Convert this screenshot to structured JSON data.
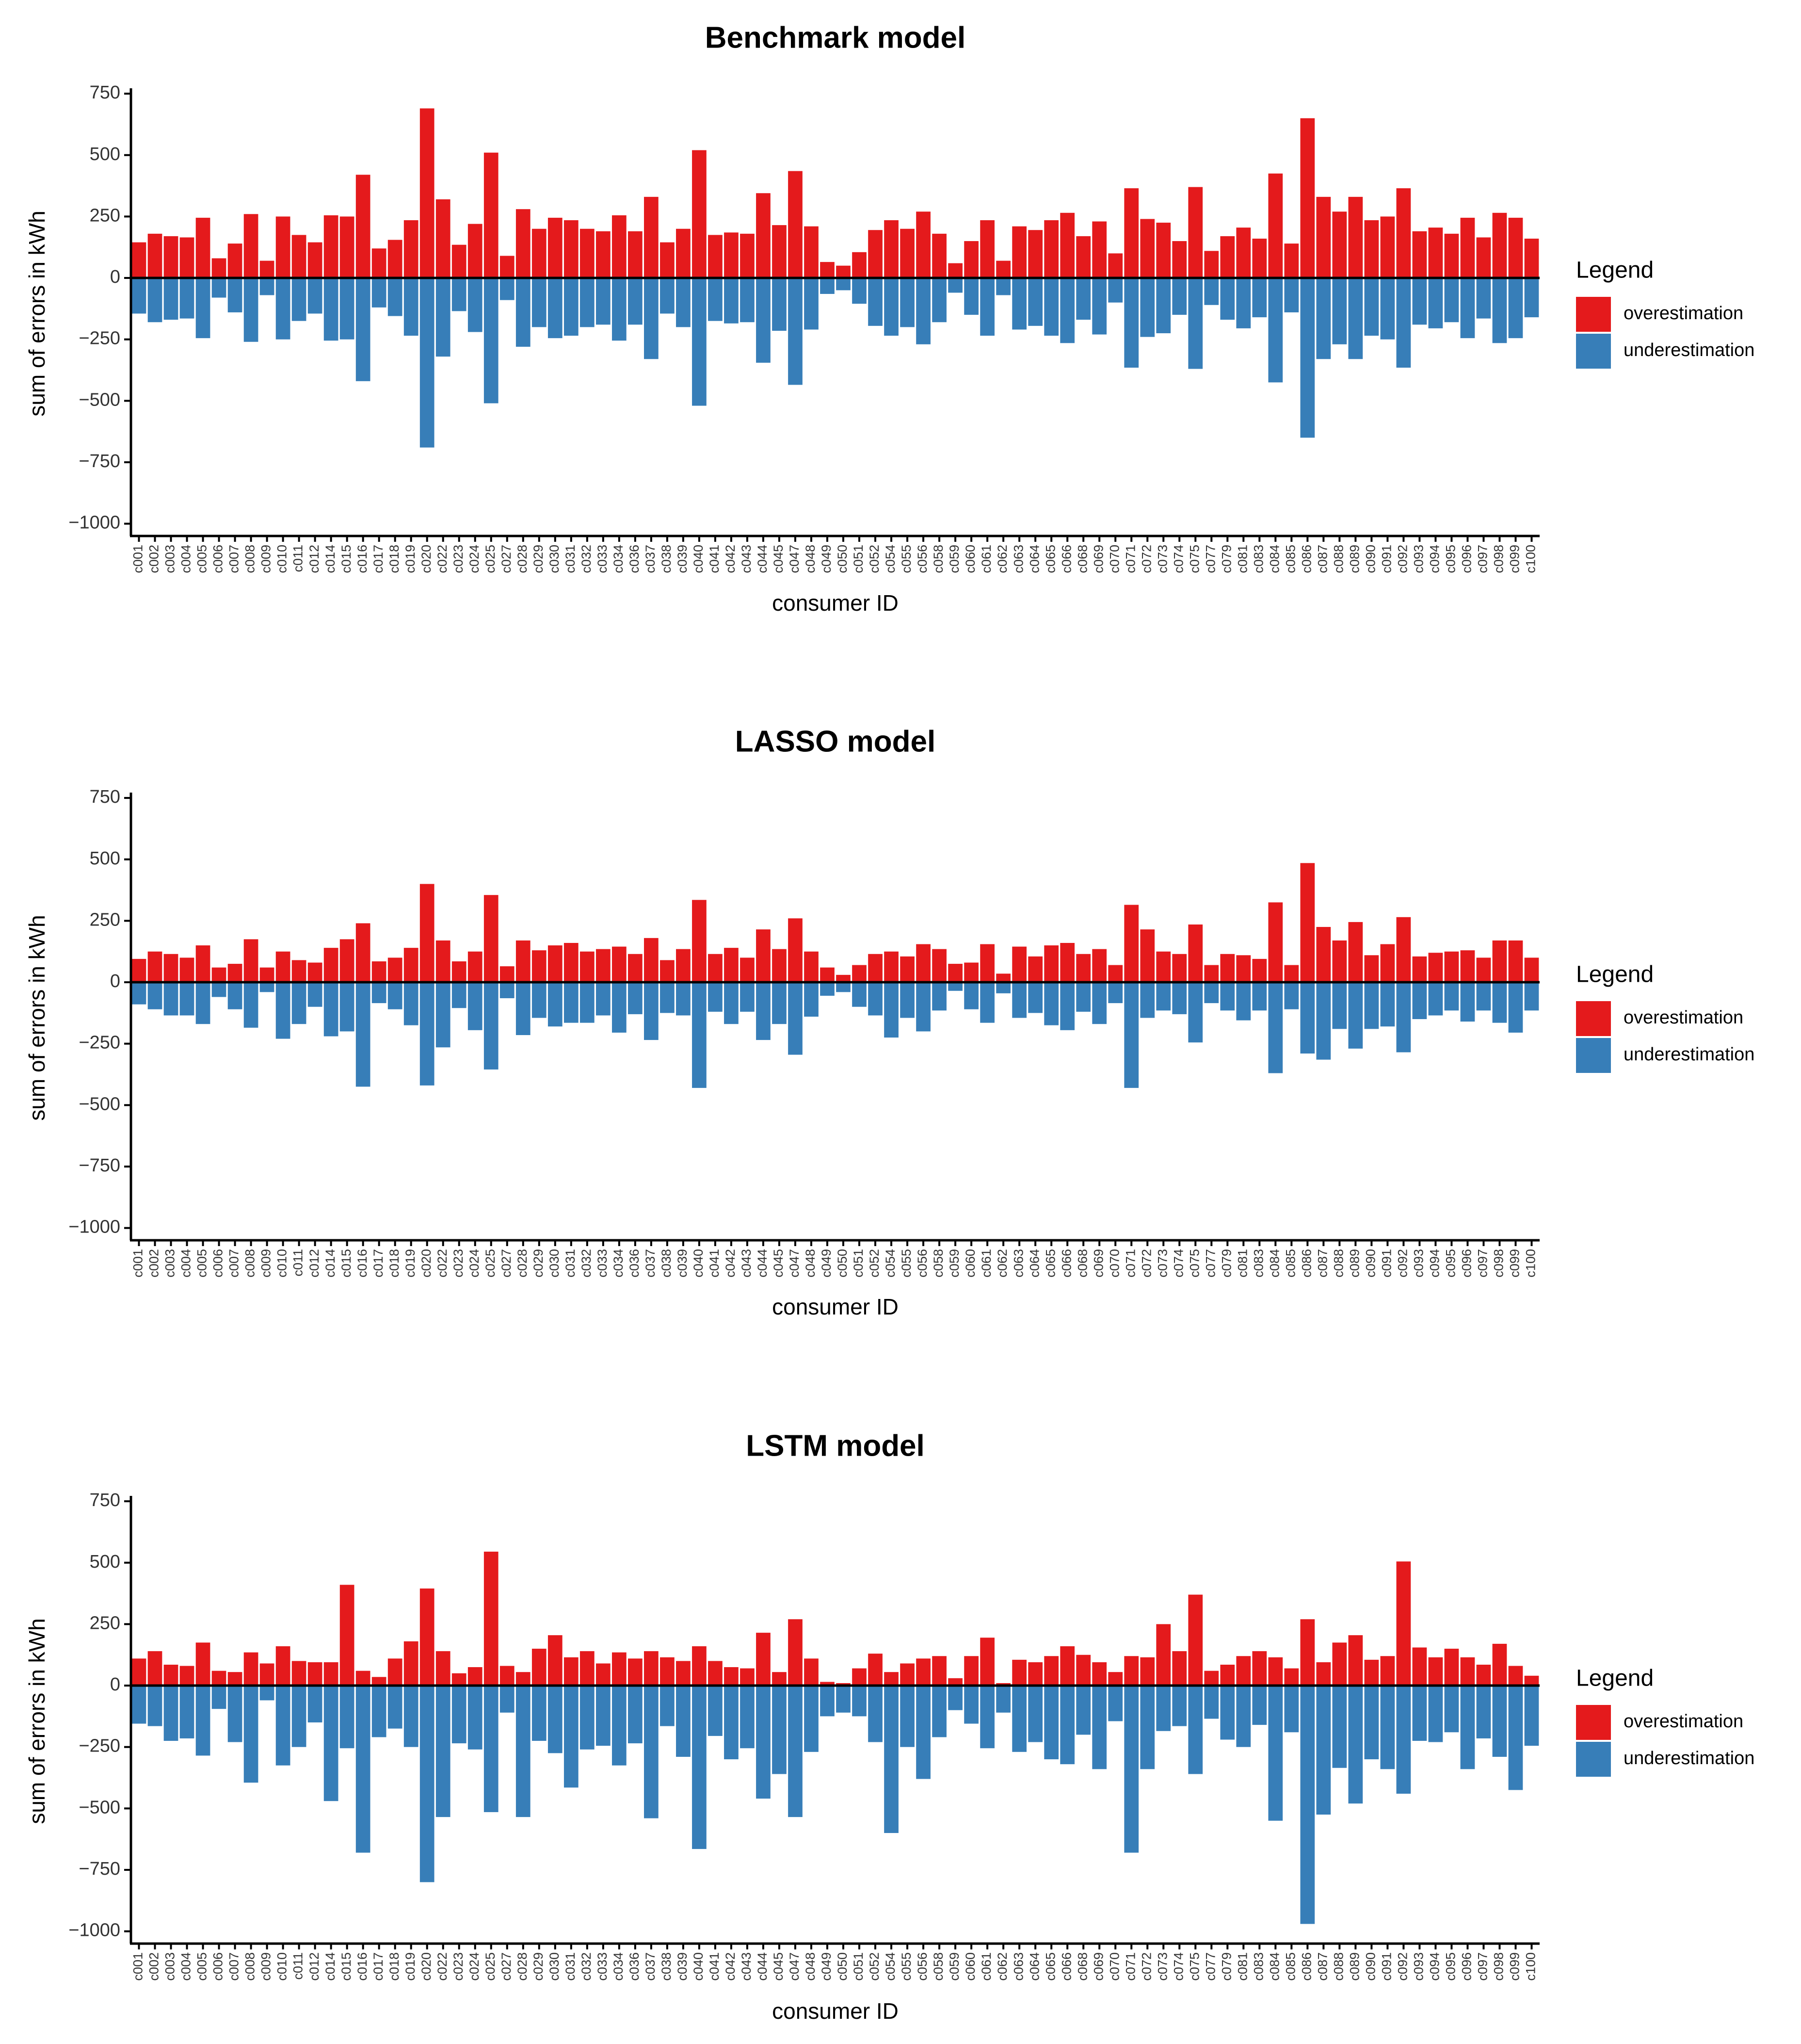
{
  "colors": {
    "over": "#e41a1c",
    "under": "#377eb8",
    "axis": "#000000",
    "text": "#333333"
  },
  "legend": {
    "title": "Legend",
    "over_label": "overestimation",
    "under_label": "underestimation"
  },
  "chart_data": [
    {
      "type": "bar",
      "title": "Benchmark model",
      "xlabel": "consumer ID",
      "ylabel": "sum of errors in kWh",
      "ylim": [
        -1050,
        760
      ],
      "yticks": [
        750,
        500,
        250,
        0,
        -250,
        -500,
        -750,
        -1000
      ],
      "ytick_labels": [
        "750",
        "500",
        "250",
        "0",
        "−250",
        "−500",
        "−750",
        "−1000"
      ],
      "categories": [
        "c001",
        "c002",
        "c003",
        "c004",
        "c005",
        "c006",
        "c007",
        "c008",
        "c009",
        "c010",
        "c011",
        "c012",
        "c014",
        "c015",
        "c016",
        "c017",
        "c018",
        "c019",
        "c020",
        "c022",
        "c023",
        "c024",
        "c025",
        "c027",
        "c028",
        "c029",
        "c030",
        "c031",
        "c032",
        "c033",
        "c034",
        "c036",
        "c037",
        "c038",
        "c039",
        "c040",
        "c041",
        "c042",
        "c043",
        "c044",
        "c045",
        "c047",
        "c048",
        "c049",
        "c050",
        "c051",
        "c052",
        "c054",
        "c055",
        "c056",
        "c058",
        "c059",
        "c060",
        "c061",
        "c062",
        "c063",
        "c064",
        "c065",
        "c066",
        "c068",
        "c069",
        "c070",
        "c071",
        "c072",
        "c073",
        "c074",
        "c075",
        "c077",
        "c079",
        "c081",
        "c083",
        "c084",
        "c085",
        "c086",
        "c087",
        "c088",
        "c089",
        "c090",
        "c091",
        "c092",
        "c093",
        "c094",
        "c095",
        "c096",
        "c097",
        "c098",
        "c099",
        "c100"
      ],
      "series": [
        {
          "name": "overestimation",
          "values": [
            145,
            180,
            170,
            165,
            245,
            80,
            140,
            260,
            70,
            250,
            175,
            145,
            255,
            250,
            420,
            120,
            155,
            235,
            690,
            320,
            135,
            220,
            510,
            90,
            280,
            200,
            245,
            235,
            200,
            190,
            255,
            190,
            330,
            145,
            200,
            520,
            175,
            185,
            180,
            345,
            215,
            435,
            210,
            65,
            50,
            105,
            195,
            235,
            200,
            270,
            180,
            60,
            150,
            235,
            70,
            210,
            195,
            235,
            265,
            170,
            230,
            100,
            365,
            240,
            225,
            150,
            370,
            110,
            170,
            205,
            160,
            425,
            140,
            650,
            330,
            270,
            330,
            235,
            250,
            365,
            190,
            205,
            180,
            245,
            165,
            265,
            245,
            160
          ]
        },
        {
          "name": "underestimation",
          "values": [
            -145,
            -180,
            -170,
            -165,
            -245,
            -80,
            -140,
            -260,
            -70,
            -250,
            -175,
            -145,
            -255,
            -250,
            -420,
            -120,
            -155,
            -235,
            -690,
            -320,
            -135,
            -220,
            -510,
            -90,
            -280,
            -200,
            -245,
            -235,
            -200,
            -190,
            -255,
            -190,
            -330,
            -145,
            -200,
            -520,
            -175,
            -185,
            -180,
            -345,
            -215,
            -435,
            -210,
            -65,
            -50,
            -105,
            -195,
            -235,
            -200,
            -270,
            -180,
            -60,
            -150,
            -235,
            -70,
            -210,
            -195,
            -235,
            -265,
            -170,
            -230,
            -100,
            -365,
            -240,
            -225,
            -150,
            -370,
            -110,
            -170,
            -205,
            -160,
            -425,
            -140,
            -650,
            -330,
            -270,
            -330,
            -235,
            -250,
            -365,
            -190,
            -205,
            -180,
            -245,
            -165,
            -265,
            -245,
            -160
          ]
        }
      ]
    },
    {
      "type": "bar",
      "title": "LASSO model",
      "xlabel": "consumer ID",
      "ylabel": "sum of errors in kWh",
      "ylim": [
        -1050,
        760
      ],
      "yticks": [
        750,
        500,
        250,
        0,
        -250,
        -500,
        -750,
        -1000
      ],
      "ytick_labels": [
        "750",
        "500",
        "250",
        "0",
        "−250",
        "−500",
        "−750",
        "−1000"
      ],
      "categories": [
        "c001",
        "c002",
        "c003",
        "c004",
        "c005",
        "c006",
        "c007",
        "c008",
        "c009",
        "c010",
        "c011",
        "c012",
        "c014",
        "c015",
        "c016",
        "c017",
        "c018",
        "c019",
        "c020",
        "c022",
        "c023",
        "c024",
        "c025",
        "c027",
        "c028",
        "c029",
        "c030",
        "c031",
        "c032",
        "c033",
        "c034",
        "c036",
        "c037",
        "c038",
        "c039",
        "c040",
        "c041",
        "c042",
        "c043",
        "c044",
        "c045",
        "c047",
        "c048",
        "c049",
        "c050",
        "c051",
        "c052",
        "c054",
        "c055",
        "c056",
        "c058",
        "c059",
        "c060",
        "c061",
        "c062",
        "c063",
        "c064",
        "c065",
        "c066",
        "c068",
        "c069",
        "c070",
        "c071",
        "c072",
        "c073",
        "c074",
        "c075",
        "c077",
        "c079",
        "c081",
        "c083",
        "c084",
        "c085",
        "c086",
        "c087",
        "c088",
        "c089",
        "c090",
        "c091",
        "c092",
        "c093",
        "c094",
        "c095",
        "c096",
        "c097",
        "c098",
        "c099",
        "c100"
      ],
      "series": [
        {
          "name": "overestimation",
          "values": [
            95,
            125,
            115,
            100,
            150,
            60,
            75,
            175,
            60,
            125,
            90,
            80,
            140,
            175,
            240,
            85,
            100,
            140,
            400,
            170,
            85,
            125,
            355,
            65,
            170,
            130,
            150,
            160,
            125,
            135,
            145,
            115,
            180,
            90,
            135,
            335,
            115,
            140,
            100,
            215,
            135,
            260,
            125,
            60,
            30,
            70,
            115,
            125,
            105,
            155,
            135,
            75,
            80,
            155,
            35,
            145,
            105,
            150,
            160,
            115,
            135,
            70,
            315,
            215,
            125,
            115,
            235,
            70,
            115,
            110,
            95,
            325,
            70,
            485,
            225,
            170,
            245,
            110,
            155,
            265,
            105,
            120,
            125,
            130,
            100,
            170,
            170,
            100
          ]
        },
        {
          "name": "underestimation",
          "values": [
            -90,
            -110,
            -135,
            -135,
            -170,
            -60,
            -110,
            -185,
            -40,
            -230,
            -170,
            -100,
            -220,
            -200,
            -425,
            -85,
            -110,
            -175,
            -420,
            -265,
            -105,
            -195,
            -355,
            -65,
            -215,
            -145,
            -180,
            -165,
            -165,
            -135,
            -205,
            -130,
            -235,
            -125,
            -135,
            -430,
            -120,
            -170,
            -120,
            -235,
            -170,
            -295,
            -140,
            -55,
            -40,
            -100,
            -135,
            -225,
            -145,
            -200,
            -115,
            -35,
            -110,
            -165,
            -45,
            -145,
            -125,
            -175,
            -195,
            -120,
            -170,
            -85,
            -430,
            -145,
            -115,
            -130,
            -245,
            -85,
            -115,
            -155,
            -115,
            -370,
            -110,
            -290,
            -315,
            -190,
            -270,
            -190,
            -180,
            -285,
            -150,
            -135,
            -115,
            -160,
            -115,
            -165,
            -205,
            -115
          ]
        }
      ]
    },
    {
      "type": "bar",
      "title": "LSTM model",
      "xlabel": "consumer ID",
      "ylabel": "sum of errors in kWh",
      "ylim": [
        -1050,
        760
      ],
      "yticks": [
        750,
        500,
        250,
        0,
        -250,
        -500,
        -750,
        -1000
      ],
      "ytick_labels": [
        "750",
        "500",
        "250",
        "0",
        "−250",
        "−500",
        "−750",
        "−1000"
      ],
      "categories": [
        "c001",
        "c002",
        "c003",
        "c004",
        "c005",
        "c006",
        "c007",
        "c008",
        "c009",
        "c010",
        "c011",
        "c012",
        "c014",
        "c015",
        "c016",
        "c017",
        "c018",
        "c019",
        "c020",
        "c022",
        "c023",
        "c024",
        "c025",
        "c027",
        "c028",
        "c029",
        "c030",
        "c031",
        "c032",
        "c033",
        "c034",
        "c036",
        "c037",
        "c038",
        "c039",
        "c040",
        "c041",
        "c042",
        "c043",
        "c044",
        "c045",
        "c047",
        "c048",
        "c049",
        "c050",
        "c051",
        "c052",
        "c054",
        "c055",
        "c056",
        "c058",
        "c059",
        "c060",
        "c061",
        "c062",
        "c063",
        "c064",
        "c065",
        "c066",
        "c068",
        "c069",
        "c070",
        "c071",
        "c072",
        "c073",
        "c074",
        "c075",
        "c077",
        "c079",
        "c081",
        "c083",
        "c084",
        "c085",
        "c086",
        "c087",
        "c088",
        "c089",
        "c090",
        "c091",
        "c092",
        "c093",
        "c094",
        "c095",
        "c096",
        "c097",
        "c098",
        "c099",
        "c100"
      ],
      "series": [
        {
          "name": "overestimation",
          "values": [
            110,
            140,
            85,
            80,
            175,
            60,
            55,
            135,
            90,
            160,
            100,
            95,
            95,
            410,
            60,
            35,
            110,
            180,
            395,
            140,
            50,
            75,
            545,
            80,
            55,
            150,
            205,
            115,
            140,
            90,
            135,
            110,
            140,
            115,
            100,
            160,
            100,
            75,
            70,
            215,
            55,
            270,
            110,
            15,
            10,
            70,
            130,
            55,
            90,
            110,
            120,
            30,
            120,
            195,
            10,
            105,
            95,
            120,
            160,
            125,
            95,
            55,
            120,
            115,
            250,
            140,
            370,
            60,
            85,
            120,
            140,
            115,
            70,
            270,
            95,
            175,
            205,
            105,
            120,
            505,
            155,
            115,
            150,
            115,
            85,
            170,
            80,
            40
          ]
        },
        {
          "name": "underestimation",
          "values": [
            -155,
            -165,
            -225,
            -215,
            -285,
            -95,
            -230,
            -395,
            -60,
            -325,
            -250,
            -150,
            -470,
            -255,
            -680,
            -210,
            -175,
            -250,
            -800,
            -535,
            -235,
            -260,
            -515,
            -110,
            -535,
            -225,
            -275,
            -415,
            -260,
            -245,
            -325,
            -235,
            -540,
            -165,
            -290,
            -665,
            -205,
            -300,
            -255,
            -460,
            -360,
            -535,
            -270,
            -125,
            -110,
            -125,
            -230,
            -600,
            -250,
            -380,
            -210,
            -100,
            -155,
            -255,
            -110,
            -270,
            -230,
            -300,
            -320,
            -200,
            -340,
            -145,
            -680,
            -340,
            -185,
            -165,
            -360,
            -135,
            -220,
            -250,
            -160,
            -550,
            -190,
            -970,
            -525,
            -335,
            -480,
            -300,
            -340,
            -440,
            -225,
            -230,
            -190,
            -340,
            -215,
            -290,
            -425,
            -245
          ]
        }
      ]
    }
  ]
}
